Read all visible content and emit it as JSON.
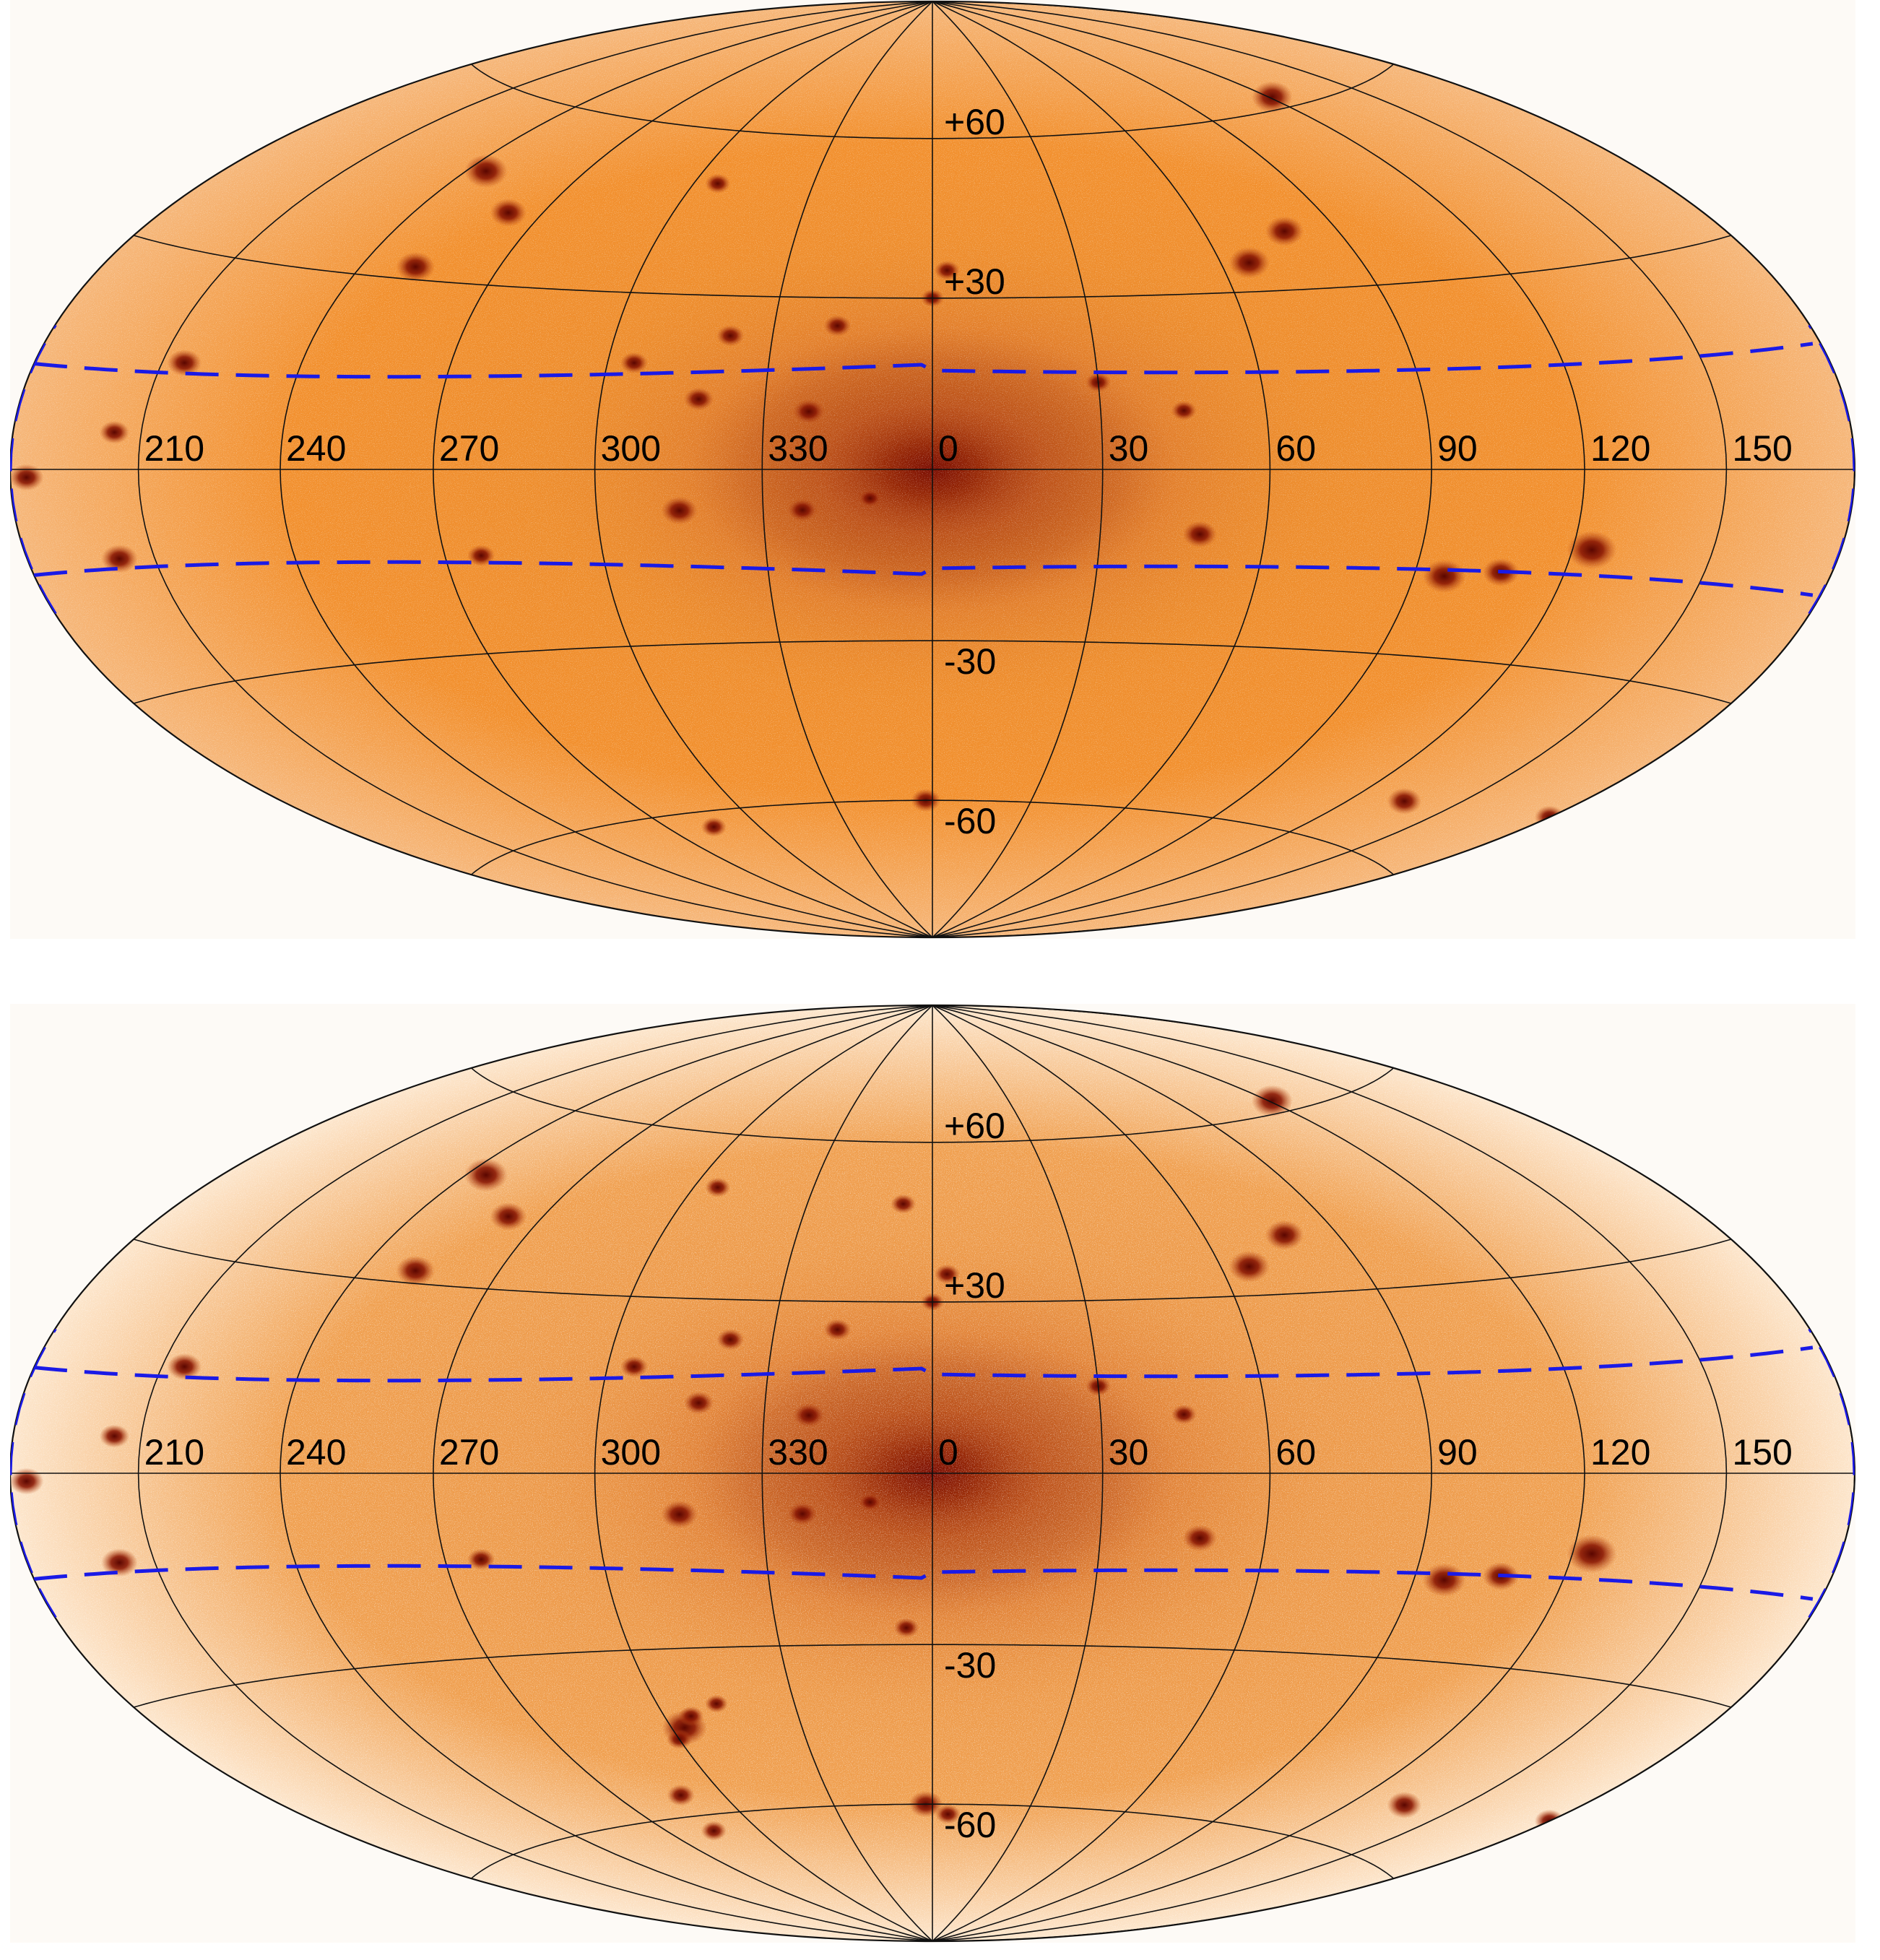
{
  "maps": [
    {
      "id": "top",
      "style": {
        "bg": "#fdfaf6",
        "inner": "#f2902e",
        "mid": "#e88a2c",
        "core": "#7a0c00",
        "edge": "#f6b77a",
        "speckle": 0.55
      },
      "lon_labels": [
        "210",
        "240",
        "270",
        "300",
        "330",
        "0",
        "30",
        "60",
        "90",
        "120",
        "150"
      ],
      "lat_labels": [
        "+60",
        "+30",
        "-30",
        "-60"
      ],
      "sources": [
        [
          245,
          48,
          1.3
        ],
        [
          252,
          32,
          1.1
        ],
        [
          262,
          42,
          1.0
        ],
        [
          215,
          15,
          0.9
        ],
        [
          204,
          5,
          0.7
        ],
        [
          202,
          -12,
          1.0
        ],
        [
          184,
          -1,
          0.9
        ],
        [
          78,
          40,
          1.1
        ],
        [
          66,
          35,
          1.2
        ],
        [
          121,
          62,
          1.2
        ],
        [
          96,
          -17,
          1.3
        ],
        [
          124,
          -12,
          1.6
        ],
        [
          107,
          -16,
          1.0
        ],
        [
          315,
          -7,
          1.0
        ],
        [
          337,
          -7,
          0.7
        ],
        [
          338,
          10,
          0.8
        ],
        [
          318,
          12,
          0.7
        ],
        [
          322,
          23,
          0.6
        ],
        [
          342,
          25,
          0.6
        ],
        [
          305,
          18,
          0.6
        ],
        [
          48,
          -11,
          0.9
        ],
        [
          358,
          -60,
          0.7
        ],
        [
          306,
          50,
          0.5
        ],
        [
          45,
          10,
          0.5
        ],
        [
          30,
          15,
          0.5
        ],
        [
          349,
          -5,
          0.4
        ],
        [
          180,
          -48,
          0.7
        ],
        [
          277,
          -14,
          0.6
        ],
        [
          135,
          -52,
          0.9
        ],
        [
          3,
          35,
          0.5
        ],
        [
          0,
          30,
          0.4
        ],
        [
          285,
          -63,
          0.5
        ]
      ]
    },
    {
      "id": "bottom",
      "style": {
        "bg": "#fdfaf6",
        "inner": "#f0a050",
        "mid": "#e89040",
        "core": "#7a0c00",
        "edge": "#fde6cc",
        "speckle": 0.8
      },
      "lon_labels": [
        "210",
        "240",
        "270",
        "300",
        "330",
        "0",
        "30",
        "60",
        "90",
        "120",
        "150"
      ],
      "lat_labels": [
        "+60",
        "+30",
        "-30",
        "-60"
      ],
      "sources": [
        [
          245,
          48,
          1.3
        ],
        [
          252,
          32,
          1.1
        ],
        [
          262,
          42,
          1.0
        ],
        [
          215,
          15,
          0.9
        ],
        [
          204,
          5,
          0.7
        ],
        [
          202,
          -12,
          1.0
        ],
        [
          184,
          -1,
          0.9
        ],
        [
          78,
          40,
          1.1
        ],
        [
          66,
          35,
          1.2
        ],
        [
          121,
          62,
          1.2
        ],
        [
          96,
          -17,
          1.3
        ],
        [
          124,
          -12,
          1.6
        ],
        [
          107,
          -16,
          1.0
        ],
        [
          315,
          -7,
          1.0
        ],
        [
          337,
          -7,
          0.7
        ],
        [
          338,
          10,
          0.8
        ],
        [
          318,
          12,
          0.7
        ],
        [
          322,
          23,
          0.6
        ],
        [
          342,
          25,
          0.6
        ],
        [
          305,
          18,
          0.6
        ],
        [
          48,
          -11,
          0.9
        ],
        [
          358,
          -60,
          0.9
        ],
        [
          306,
          50,
          0.5
        ],
        [
          45,
          10,
          0.5
        ],
        [
          30,
          15,
          0.5
        ],
        [
          349,
          -5,
          0.4
        ],
        [
          180,
          -48,
          0.7
        ],
        [
          277,
          -14,
          0.6
        ],
        [
          135,
          -52,
          0.9
        ],
        [
          3,
          35,
          0.5
        ],
        [
          0,
          30,
          0.4
        ],
        [
          285,
          -63,
          0.5
        ],
        [
          303,
          -44,
          1.4
        ],
        [
          300,
          -46,
          0.5
        ],
        [
          306,
          -42,
          0.5
        ],
        [
          355,
          -27,
          0.5
        ],
        [
          353,
          48,
          0.5
        ],
        [
          288,
          -56,
          0.6
        ],
        [
          313,
          -40,
          0.4
        ],
        [
          5,
          -62,
          0.5
        ]
      ]
    }
  ]
}
